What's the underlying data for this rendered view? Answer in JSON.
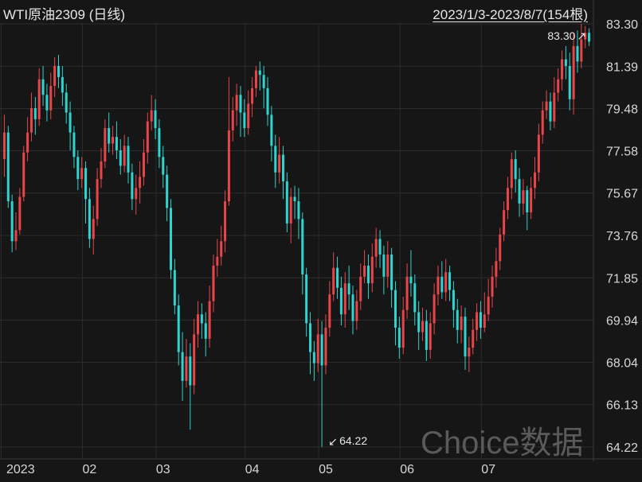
{
  "header": {
    "title": "WTI原油2309 (日线)",
    "range": "2023/1/3-2023/8/7(154根)"
  },
  "watermark": "Choice数据",
  "colors": {
    "up": "#e8454a",
    "down": "#2fd3cf",
    "grid": "#2c2c2c",
    "background": "#161616"
  },
  "chart_data": {
    "type": "candlestick",
    "title": "WTI原油2309 (日线)",
    "ylim": [
      64.22,
      83.3
    ],
    "y_ticks": [
      "83.30",
      "81.39",
      "79.48",
      "77.58",
      "75.67",
      "73.76",
      "71.85",
      "69.94",
      "68.04",
      "66.13",
      "64.22"
    ],
    "x_ticks": [
      {
        "label": "2023",
        "index": 0
      },
      {
        "label": "02",
        "index": 21
      },
      {
        "label": "03",
        "index": 40
      },
      {
        "label": "04",
        "index": 63
      },
      {
        "label": "05",
        "index": 82
      },
      {
        "label": "06",
        "index": 103
      },
      {
        "label": "07",
        "index": 124
      }
    ],
    "annotations": [
      {
        "text": "83.30",
        "index": 152,
        "value": 83.3,
        "side": "left"
      },
      {
        "text": "64.22",
        "index": 82,
        "value": 64.22,
        "side": "right"
      }
    ],
    "candles": [
      [
        77.2,
        78.4,
        79.2,
        76.4
      ],
      [
        78.4,
        75.3,
        78.7,
        75.0
      ],
      [
        75.3,
        73.5,
        75.6,
        73.0
      ],
      [
        73.5,
        74.0,
        74.8,
        73.1
      ],
      [
        74.0,
        75.5,
        75.9,
        73.8
      ],
      [
        75.5,
        77.5,
        77.8,
        75.3
      ],
      [
        77.5,
        78.4,
        79.1,
        77.1
      ],
      [
        78.4,
        79.5,
        80.2,
        78.0
      ],
      [
        79.5,
        79.0,
        80.0,
        78.3
      ],
      [
        79.0,
        80.8,
        81.3,
        78.7
      ],
      [
        80.8,
        80.1,
        81.4,
        79.6
      ],
      [
        80.1,
        79.4,
        80.6,
        78.9
      ],
      [
        79.4,
        80.5,
        81.1,
        79.0
      ],
      [
        80.5,
        81.4,
        81.8,
        80.0
      ],
      [
        81.4,
        80.9,
        81.9,
        80.4
      ],
      [
        80.9,
        80.2,
        81.4,
        79.6
      ],
      [
        80.2,
        79.3,
        80.6,
        78.8
      ],
      [
        79.3,
        78.4,
        79.8,
        77.6
      ],
      [
        78.4,
        77.3,
        78.7,
        76.8
      ],
      [
        77.3,
        76.3,
        77.6,
        75.8
      ],
      [
        76.3,
        76.8,
        77.3,
        75.9
      ],
      [
        76.8,
        75.4,
        77.1,
        74.3
      ],
      [
        75.4,
        73.6,
        75.9,
        73.2
      ],
      [
        73.6,
        74.5,
        75.1,
        72.9
      ],
      [
        74.5,
        76.3,
        76.8,
        74.2
      ],
      [
        76.3,
        77.1,
        77.7,
        75.9
      ],
      [
        77.1,
        78.6,
        79.0,
        76.8
      ],
      [
        78.6,
        77.9,
        79.3,
        77.5
      ],
      [
        77.9,
        78.2,
        78.7,
        77.4
      ],
      [
        78.2,
        77.6,
        78.9,
        77.2
      ],
      [
        77.6,
        76.9,
        78.1,
        76.5
      ],
      [
        76.9,
        77.8,
        78.3,
        76.6
      ],
      [
        77.8,
        76.6,
        78.2,
        76.1
      ],
      [
        76.6,
        75.4,
        77.0,
        74.9
      ],
      [
        75.4,
        75.9,
        76.5,
        74.7
      ],
      [
        75.9,
        76.4,
        77.1,
        75.2
      ],
      [
        76.4,
        77.5,
        78.1,
        76.0
      ],
      [
        77.5,
        78.9,
        79.3,
        77.0
      ],
      [
        78.9,
        79.4,
        80.1,
        78.5
      ],
      [
        79.4,
        78.6,
        79.9,
        78.1
      ],
      [
        78.6,
        77.3,
        79.0,
        76.8
      ],
      [
        77.3,
        76.5,
        77.8,
        75.9
      ],
      [
        76.5,
        75.0,
        76.9,
        74.4
      ],
      [
        75.0,
        72.2,
        75.4,
        71.8
      ],
      [
        72.2,
        70.6,
        72.7,
        70.2
      ],
      [
        70.6,
        68.5,
        71.1,
        67.9
      ],
      [
        68.5,
        67.2,
        69.4,
        66.3
      ],
      [
        67.2,
        68.3,
        69.1,
        66.9
      ],
      [
        68.3,
        67.0,
        68.9,
        65.0
      ],
      [
        67.0,
        69.3,
        70.0,
        66.6
      ],
      [
        69.3,
        70.2,
        70.8,
        68.7
      ],
      [
        70.2,
        69.8,
        70.7,
        69.1
      ],
      [
        69.8,
        69.1,
        70.3,
        68.3
      ],
      [
        69.1,
        70.8,
        71.5,
        68.7
      ],
      [
        70.8,
        72.4,
        72.9,
        70.3
      ],
      [
        72.4,
        72.8,
        73.6,
        71.9
      ],
      [
        72.8,
        73.5,
        74.2,
        72.4
      ],
      [
        73.5,
        75.3,
        75.8,
        73.0
      ],
      [
        75.3,
        78.5,
        80.9,
        75.1
      ],
      [
        78.5,
        79.4,
        80.0,
        78.0
      ],
      [
        79.4,
        80.1,
        80.6,
        78.7
      ],
      [
        80.1,
        79.3,
        80.5,
        78.2
      ],
      [
        79.3,
        78.6,
        79.9,
        78.2
      ],
      [
        78.6,
        79.7,
        80.3,
        78.3
      ],
      [
        79.7,
        80.4,
        80.9,
        79.1
      ],
      [
        80.4,
        81.2,
        81.4,
        80.0
      ],
      [
        81.2,
        81.0,
        81.6,
        80.3
      ],
      [
        81.0,
        80.4,
        81.4,
        79.5
      ],
      [
        80.4,
        79.2,
        80.9,
        78.7
      ],
      [
        79.2,
        77.8,
        79.6,
        77.1
      ],
      [
        77.8,
        76.6,
        78.3,
        75.9
      ],
      [
        76.6,
        77.4,
        78.2,
        76.1
      ],
      [
        77.4,
        76.2,
        77.8,
        75.4
      ],
      [
        76.2,
        74.3,
        76.6,
        73.9
      ],
      [
        74.3,
        75.5,
        75.9,
        73.4
      ],
      [
        75.5,
        75.3,
        76.0,
        74.5
      ],
      [
        75.3,
        74.5,
        75.9,
        73.6
      ],
      [
        74.5,
        72.0,
        74.8,
        71.1
      ],
      [
        72.0,
        69.8,
        72.3,
        69.2
      ],
      [
        69.8,
        68.5,
        70.3,
        67.5
      ],
      [
        68.5,
        68.0,
        69.0,
        67.2
      ],
      [
        68.0,
        69.3,
        70.0,
        67.6
      ],
      [
        69.3,
        67.9,
        69.9,
        64.22
      ],
      [
        67.9,
        69.6,
        70.2,
        67.5
      ],
      [
        69.6,
        71.1,
        71.7,
        69.2
      ],
      [
        71.1,
        72.3,
        73.0,
        70.8
      ],
      [
        72.3,
        71.4,
        72.8,
        70.9
      ],
      [
        71.4,
        70.2,
        71.9,
        69.7
      ],
      [
        70.2,
        71.6,
        72.1,
        69.6
      ],
      [
        71.6,
        71.1,
        72.4,
        70.4
      ],
      [
        71.1,
        69.9,
        71.5,
        69.3
      ],
      [
        69.9,
        70.8,
        71.3,
        69.5
      ],
      [
        70.8,
        71.9,
        72.5,
        70.4
      ],
      [
        71.9,
        72.4,
        73.1,
        71.6
      ],
      [
        72.4,
        71.6,
        72.9,
        70.9
      ],
      [
        71.6,
        72.8,
        73.4,
        71.2
      ],
      [
        72.8,
        73.6,
        74.1,
        72.3
      ],
      [
        73.6,
        72.9,
        74.0,
        72.3
      ],
      [
        72.9,
        71.9,
        73.3,
        71.1
      ],
      [
        71.9,
        72.9,
        73.5,
        71.4
      ],
      [
        72.9,
        71.3,
        73.2,
        70.5
      ],
      [
        71.3,
        69.6,
        71.7,
        68.8
      ],
      [
        69.6,
        68.7,
        70.1,
        68.2
      ],
      [
        68.7,
        70.4,
        71.0,
        68.4
      ],
      [
        70.4,
        71.9,
        72.5,
        70.0
      ],
      [
        71.9,
        71.6,
        73.1,
        71.0
      ],
      [
        71.6,
        70.3,
        72.0,
        69.7
      ],
      [
        70.3,
        69.4,
        70.8,
        68.6
      ],
      [
        69.4,
        69.9,
        70.5,
        69.0
      ],
      [
        69.9,
        68.6,
        70.4,
        68.1
      ],
      [
        68.6,
        69.8,
        70.3,
        68.2
      ],
      [
        69.8,
        71.1,
        71.6,
        69.3
      ],
      [
        71.1,
        71.9,
        72.4,
        70.6
      ],
      [
        71.9,
        71.2,
        72.6,
        70.9
      ],
      [
        71.2,
        72.1,
        72.7,
        70.8
      ],
      [
        72.1,
        71.3,
        72.4,
        70.8
      ],
      [
        71.3,
        70.4,
        71.7,
        69.6
      ],
      [
        70.4,
        69.5,
        70.9,
        68.9
      ],
      [
        69.5,
        70.1,
        70.6,
        68.9
      ],
      [
        70.1,
        68.3,
        70.5,
        67.7
      ],
      [
        68.3,
        68.7,
        69.2,
        67.6
      ],
      [
        68.7,
        69.5,
        70.0,
        68.4
      ],
      [
        69.5,
        70.3,
        70.7,
        69.0
      ],
      [
        70.3,
        69.6,
        70.8,
        69.1
      ],
      [
        69.6,
        70.2,
        71.2,
        69.4
      ],
      [
        70.2,
        71.0,
        71.8,
        69.9
      ],
      [
        71.0,
        71.9,
        72.4,
        70.5
      ],
      [
        71.9,
        72.6,
        73.2,
        71.4
      ],
      [
        72.6,
        73.8,
        74.1,
        72.2
      ],
      [
        73.8,
        74.9,
        75.3,
        73.5
      ],
      [
        74.9,
        75.9,
        76.4,
        74.5
      ],
      [
        75.9,
        77.2,
        77.5,
        75.4
      ],
      [
        77.2,
        76.3,
        77.6,
        75.7
      ],
      [
        76.3,
        75.2,
        76.8,
        74.6
      ],
      [
        75.2,
        75.8,
        76.3,
        74.7
      ],
      [
        75.8,
        74.8,
        76.0,
        74.0
      ],
      [
        74.8,
        75.9,
        76.4,
        74.5
      ],
      [
        75.9,
        76.6,
        77.3,
        75.4
      ],
      [
        76.6,
        78.3,
        78.8,
        76.2
      ],
      [
        78.3,
        79.4,
        79.8,
        77.9
      ],
      [
        79.4,
        79.8,
        80.3,
        79.0
      ],
      [
        79.8,
        78.9,
        80.2,
        78.5
      ],
      [
        78.9,
        80.2,
        80.9,
        78.6
      ],
      [
        80.2,
        80.8,
        81.3,
        79.8
      ],
      [
        80.8,
        81.7,
        82.1,
        80.3
      ],
      [
        81.7,
        81.4,
        82.3,
        80.8
      ],
      [
        81.4,
        79.9,
        82.0,
        79.4
      ],
      [
        79.9,
        82.3,
        82.9,
        79.2
      ],
      [
        82.3,
        81.6,
        83.0,
        81.1
      ],
      [
        81.6,
        82.6,
        83.3,
        81.3
      ],
      [
        82.6,
        82.9,
        83.2,
        82.2
      ],
      [
        82.9,
        82.5,
        83.1,
        82.3
      ]
    ]
  }
}
